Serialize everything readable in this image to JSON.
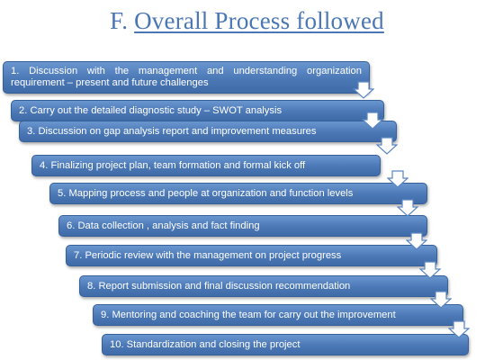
{
  "title": {
    "prefix": "F.",
    "text": "Overall Process followed"
  },
  "steps": [
    {
      "line1": "1.  Discussion  with  the  management  and  understanding  organization",
      "line2": "requirement – present and future challenges"
    },
    {
      "text": "2.  Carry out the detailed diagnostic study – SWOT analysis"
    },
    {
      "text": "3. Discussion on gap analysis report and improvement measures"
    },
    {
      "text": "4. Finalizing project plan, team formation and formal kick off"
    },
    {
      "text": "5.  Mapping process and people at organization and function levels"
    },
    {
      "text": "6. Data collection , analysis and fact finding"
    },
    {
      "text": "7.  Periodic review with the management on project progress"
    },
    {
      "text": "8. Report submission and final discussion recommendation"
    },
    {
      "text": "9. Mentoring and coaching the team for carry out the  improvement"
    },
    {
      "text": "10.  Standardization and closing the project"
    }
  ],
  "colors": {
    "title": "#4a77b4",
    "box": "#4f7cba",
    "arrow_fill": "#ffffff",
    "arrow_stroke": "#5a86c0"
  },
  "icons": {
    "connector": "down-arrow-icon"
  }
}
